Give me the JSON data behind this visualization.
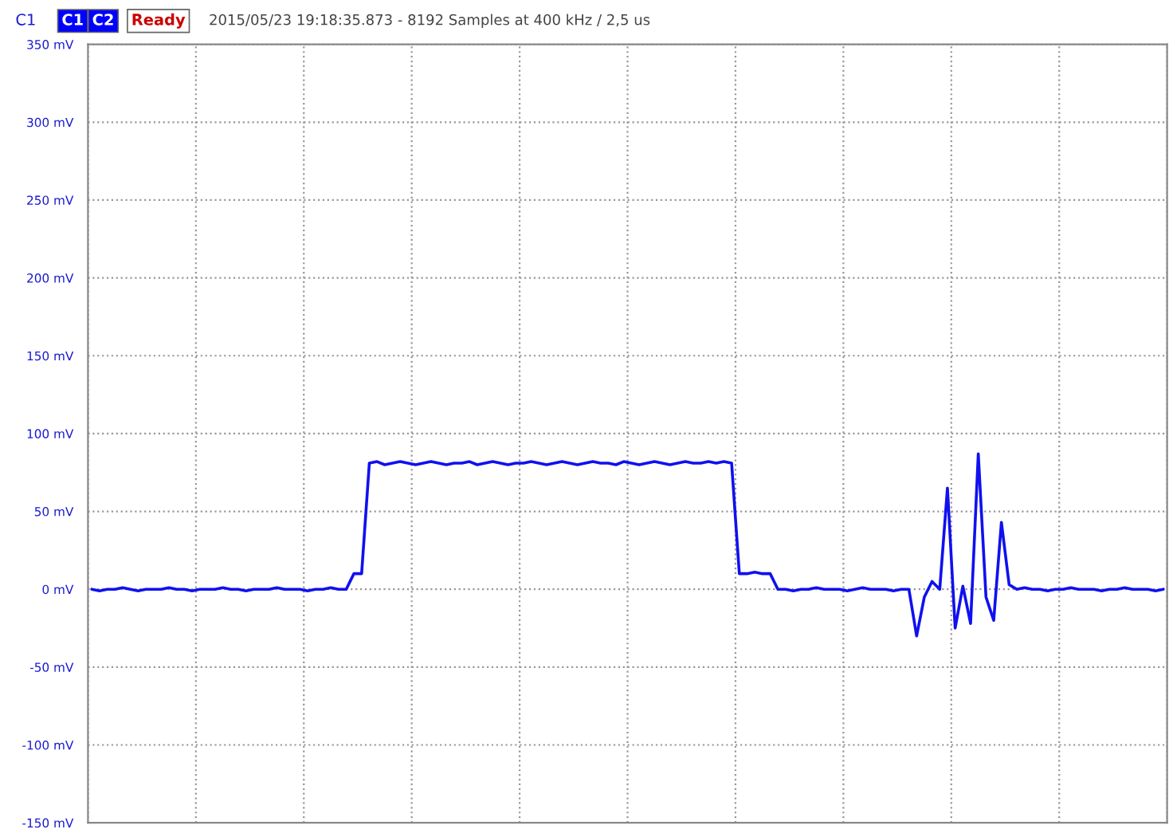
{
  "chart_data": {
    "type": "line",
    "title": "2015/05/23 19:18:35.873 - 8192 Samples at 400 kHz / 2,5 us",
    "annotations": [
      "C1",
      "C1",
      "C2",
      "Ready"
    ],
    "categories": [
      null,
      null,
      null,
      null,
      null,
      null,
      null,
      null,
      null,
      null,
      null,
      null,
      null,
      null,
      null,
      null,
      null,
      null,
      null,
      null,
      null,
      null,
      null,
      null,
      null,
      null,
      null,
      null,
      null,
      null,
      null,
      null,
      null,
      null,
      null,
      null,
      null,
      null,
      null,
      null,
      null,
      null,
      null,
      null,
      null,
      null,
      null,
      null,
      null,
      null,
      null,
      null,
      null,
      null,
      null,
      null,
      null,
      null,
      null,
      null,
      null,
      null,
      null,
      null,
      null,
      null,
      null,
      null,
      null,
      null,
      null,
      null,
      null,
      null,
      null,
      null,
      null,
      null,
      null,
      null,
      null,
      null,
      null,
      null,
      null,
      null,
      null,
      null,
      null,
      null,
      null,
      null,
      null,
      null,
      null,
      null,
      null,
      null,
      null,
      null,
      null,
      null,
      null,
      null,
      null,
      null,
      null,
      null,
      null,
      null,
      null,
      null,
      null,
      null,
      null,
      null,
      null,
      null,
      null,
      null,
      null,
      null,
      null,
      null,
      null,
      null,
      null,
      null,
      null,
      null,
      null,
      null,
      null,
      null,
      null,
      null,
      null,
      null,
      null,
      null
    ],
    "series": [
      {
        "color": "#1010f0",
        "values": [
          0,
          -1,
          0,
          0,
          1,
          0,
          -1,
          0,
          0,
          0,
          1,
          0,
          0,
          -1,
          0,
          0,
          0,
          1,
          0,
          0,
          -1,
          0,
          0,
          0,
          1,
          0,
          0,
          0,
          -1,
          0,
          0,
          1,
          0,
          0,
          10,
          10,
          81,
          82,
          80,
          81,
          82,
          81,
          80,
          81,
          82,
          81,
          80,
          81,
          81,
          82,
          80,
          81,
          82,
          81,
          80,
          81,
          81,
          82,
          81,
          80,
          81,
          82,
          81,
          80,
          81,
          82,
          81,
          81,
          80,
          82,
          81,
          80,
          81,
          82,
          81,
          80,
          81,
          82,
          81,
          81,
          82,
          81,
          82,
          81,
          10,
          10,
          11,
          10,
          10,
          0,
          0,
          -1,
          0,
          0,
          1,
          0,
          0,
          0,
          -1,
          0,
          1,
          0,
          0,
          0,
          -1,
          0,
          0,
          -30,
          -5,
          5,
          0,
          65,
          -25,
          2,
          -22,
          87,
          -5,
          -20,
          43,
          3,
          0,
          1,
          0,
          0,
          -1,
          0,
          0,
          1,
          0,
          0,
          0,
          -1,
          0,
          0,
          1,
          0,
          0,
          0,
          -1,
          0
        ]
      }
    ],
    "ylim": [
      -150,
      350
    ],
    "yticks": [
      {
        "value": -150,
        "label": "-150 mV"
      },
      {
        "value": -100,
        "label": "-100 mV"
      },
      {
        "value": -50,
        "label": "-50 mV"
      },
      {
        "value": 0,
        "label": "0 mV"
      },
      {
        "value": 50,
        "label": "50 mV"
      },
      {
        "value": 100,
        "label": "100 mV"
      },
      {
        "value": 150,
        "label": "150 mV"
      },
      {
        "value": 200,
        "label": "200 mV"
      },
      {
        "value": 250,
        "label": "250 mV"
      },
      {
        "value": 300,
        "label": "300 mV"
      },
      {
        "value": 350,
        "label": "350 mV"
      }
    ],
    "grid": true,
    "line_style": "solid",
    "marker": "none"
  }
}
